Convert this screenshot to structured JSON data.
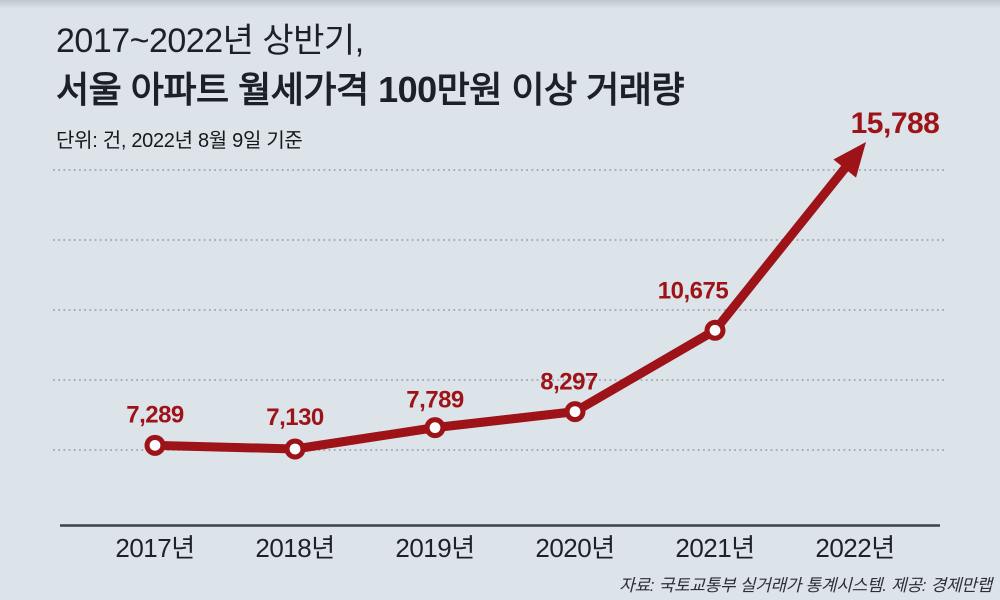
{
  "header": {
    "title_line1": "2017~2022년 상반기,",
    "title_line2": "서울 아파트 월세가격 100만원 이상 거래량",
    "subtitle": "단위: 건, 2022년 8월 9일 기준"
  },
  "footer": {
    "source": "자료: 국토교통부 실거래가 통계시스템. 제공: 경제만랩"
  },
  "chart_data": {
    "type": "line",
    "title": "2017~2022년 상반기, 서울 아파트 월세가격 100만원 이상 거래량",
    "unit_note": "단위: 건, 2022년 8월 9일 기준",
    "categories": [
      "2017년",
      "2018년",
      "2019년",
      "2020년",
      "2021년",
      "2022년"
    ],
    "values": [
      7289,
      7130,
      7789,
      8297,
      10675,
      15788
    ],
    "value_labels": [
      "7,289",
      "7,130",
      "7,789",
      "8,297",
      "10,675",
      "15,788"
    ],
    "grid": "horizontal-dotted",
    "gridline_count": 5,
    "legend": "none",
    "marker_style": "open-circle",
    "end_style": "arrow-to-last-value",
    "colors": {
      "line": "#9d1318",
      "label": "#9d1318",
      "background": "#dce3e9",
      "text": "#1e2228",
      "axis": "#3d434d",
      "grid": "#9fa8b2",
      "marker_fill": "#fbfcfd"
    }
  }
}
